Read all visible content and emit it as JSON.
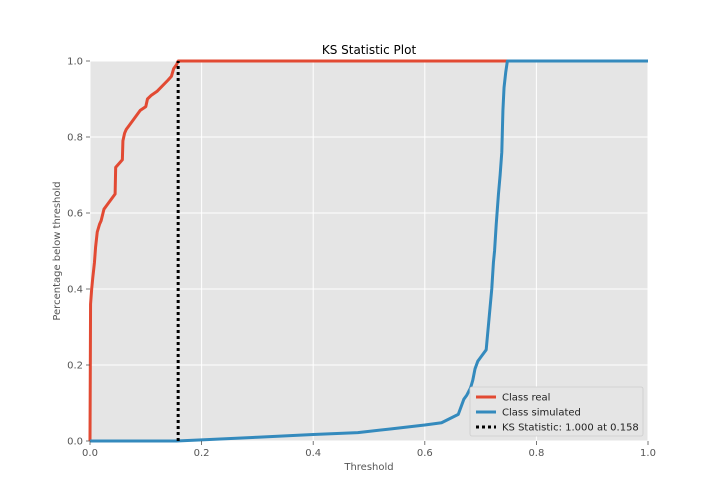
{
  "chart_data": {
    "type": "line",
    "title": "KS Statistic Plot",
    "xlabel": "Threshold",
    "ylabel": "Percentage below threshold",
    "xlim": [
      0.0,
      1.0
    ],
    "ylim": [
      0.0,
      1.0
    ],
    "xticks": [
      "0.0",
      "0.2",
      "0.4",
      "0.6",
      "0.8",
      "1.0"
    ],
    "yticks": [
      "0.0",
      "0.2",
      "0.4",
      "0.6",
      "0.8",
      "1.0"
    ],
    "grid": true,
    "legend_position": "lower-right",
    "background_color": "#e5e5e5",
    "series": [
      {
        "name": "Class real",
        "color": "#e24a33",
        "x": [
          0.0,
          0.001,
          0.003,
          0.005,
          0.008,
          0.01,
          0.013,
          0.017,
          0.02,
          0.025,
          0.03,
          0.045,
          0.046,
          0.058,
          0.059,
          0.062,
          0.065,
          0.07,
          0.08,
          0.09,
          0.1,
          0.103,
          0.11,
          0.12,
          0.14,
          0.146,
          0.15,
          0.155,
          0.158,
          1.0
        ],
        "y": [
          0.0,
          0.36,
          0.4,
          0.43,
          0.47,
          0.51,
          0.55,
          0.57,
          0.58,
          0.61,
          0.62,
          0.65,
          0.72,
          0.74,
          0.79,
          0.81,
          0.82,
          0.83,
          0.85,
          0.87,
          0.88,
          0.9,
          0.91,
          0.92,
          0.95,
          0.96,
          0.98,
          0.99,
          1.0,
          1.0
        ]
      },
      {
        "name": "Class simulated",
        "color": "#348abd",
        "x": [
          0.0,
          0.155,
          0.2,
          0.3,
          0.4,
          0.48,
          0.54,
          0.6,
          0.63,
          0.66,
          0.67,
          0.675,
          0.682,
          0.686,
          0.69,
          0.695,
          0.7,
          0.71,
          0.715,
          0.72,
          0.723,
          0.725,
          0.728,
          0.73,
          0.732,
          0.735,
          0.738,
          0.74,
          0.742,
          0.745,
          0.748,
          1.0
        ],
        "y": [
          0.0,
          0.0,
          0.003,
          0.01,
          0.017,
          0.022,
          0.032,
          0.042,
          0.048,
          0.07,
          0.11,
          0.12,
          0.14,
          0.16,
          0.19,
          0.21,
          0.22,
          0.24,
          0.32,
          0.4,
          0.47,
          0.5,
          0.57,
          0.61,
          0.65,
          0.7,
          0.76,
          0.87,
          0.93,
          0.97,
          1.0,
          1.0
        ]
      },
      {
        "name": "KS Statistic: 1.000 at 0.158",
        "color": "#000000",
        "style": "dotted",
        "x": [
          0.158,
          0.158
        ],
        "y": [
          0.0,
          1.0
        ]
      }
    ]
  }
}
